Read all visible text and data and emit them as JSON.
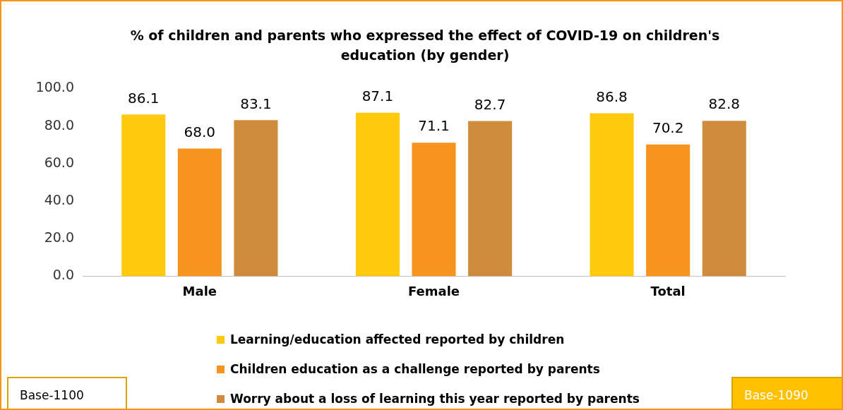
{
  "chart_data": {
    "type": "bar",
    "title": "% of children and parents who expressed  the effect of COVID-19 on children's education (by gender)",
    "categories": [
      "Male",
      "Female",
      "Total"
    ],
    "series": [
      {
        "name": "Learning/education affected reported by children",
        "color": "#ffc90e",
        "values": [
          86.1,
          87.1,
          86.8
        ],
        "value_labels": [
          "86.1",
          "87.1",
          "86.8"
        ]
      },
      {
        "name": "Children education as a challenge reported by parents",
        "color": "#f7941d",
        "values": [
          68.0,
          71.1,
          70.2
        ],
        "value_labels": [
          "68.0",
          "71.1",
          "70.2"
        ]
      },
      {
        "name": "Worry about a loss of learning this year reported by parents",
        "color": "#d08c3c",
        "values": [
          83.1,
          82.7,
          82.8
        ],
        "value_labels": [
          "83.1",
          "82.7",
          "82.8"
        ]
      }
    ],
    "ylim": [
      0,
      100
    ],
    "yticks": [
      {
        "value": 0,
        "label": "0.0"
      },
      {
        "value": 20,
        "label": "20.0"
      },
      {
        "value": 40,
        "label": "40.0"
      },
      {
        "value": 60,
        "label": "60.0"
      },
      {
        "value": 80,
        "label": "80.0"
      },
      {
        "value": 100,
        "label": "100.0"
      }
    ],
    "grid": false,
    "legend": "bottom",
    "annotations": [
      "Base-1100",
      "Base-1090"
    ]
  }
}
